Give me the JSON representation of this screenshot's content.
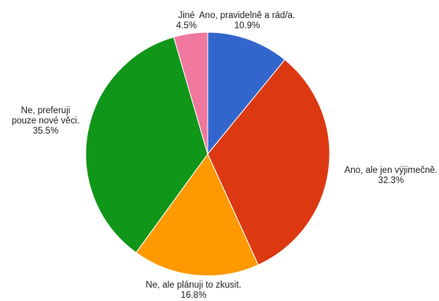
{
  "chart_data": {
    "type": "pie",
    "title": "",
    "start_angle_deg": 0,
    "direction": "clockwise",
    "slices": [
      {
        "label": "Ano, pravidelně a rád/a.",
        "label_lines": [
          "Ano, pravidelně a rád/a."
        ],
        "value": 10.9,
        "value_label": "10.9%",
        "color": "#3366cc"
      },
      {
        "label": "Ano, ale jen výjimečně.",
        "label_lines": [
          "Ano, ale jen výjimečně."
        ],
        "value": 32.3,
        "value_label": "32.3%",
        "color": "#dc3912"
      },
      {
        "label": "Ne, ale plánuji to zkusit.",
        "label_lines": [
          "Ne, ale plánuji to zkusit."
        ],
        "value": 16.8,
        "value_label": "16.8%",
        "color": "#ff9900"
      },
      {
        "label": "Ne, preferuji pouze nové věci.",
        "label_lines": [
          "Ne, preferuji",
          "pouze nové věci."
        ],
        "value": 35.5,
        "value_label": "35.5%",
        "color": "#109618"
      },
      {
        "label": "Jiné",
        "label_lines": [
          "Jiné"
        ],
        "value": 4.5,
        "value_label": "4.5%",
        "color": "#f0779e"
      }
    ]
  }
}
